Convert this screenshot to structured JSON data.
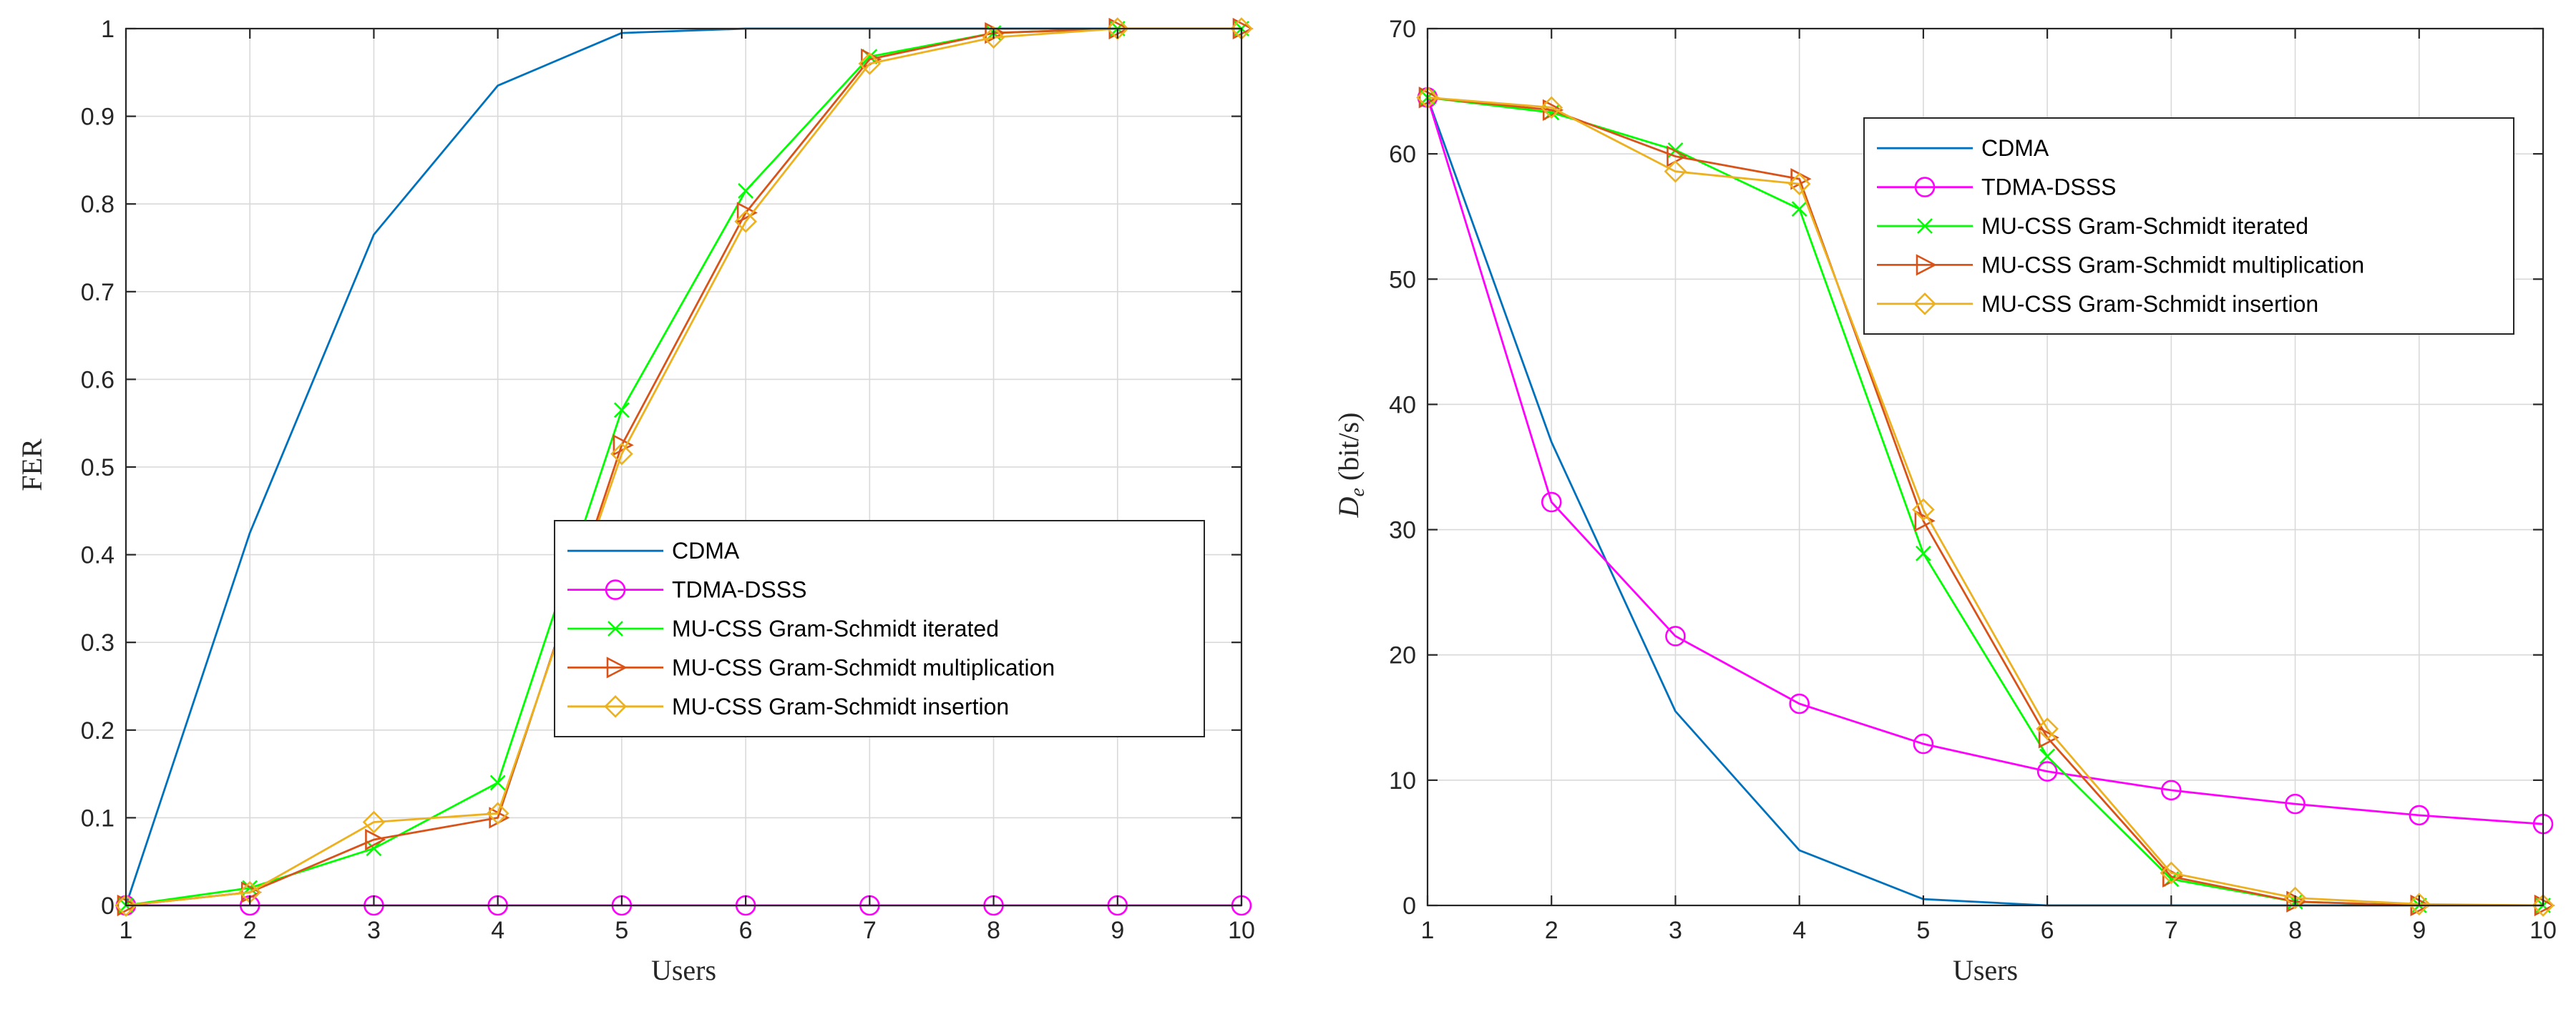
{
  "chart_data": [
    {
      "type": "line",
      "title": "",
      "xlabel": "Users",
      "ylabel": "FER",
      "xlim": [
        1,
        10
      ],
      "ylim": [
        0,
        1
      ],
      "grid": true,
      "legend_position": "center-right",
      "x": [
        1,
        2,
        3,
        4,
        5,
        6,
        7,
        8,
        9,
        10
      ],
      "x_ticks": [
        "1",
        "2",
        "3",
        "4",
        "5",
        "6",
        "7",
        "8",
        "9",
        "10"
      ],
      "y_ticks": [
        0,
        0.1,
        0.2,
        0.3,
        0.4,
        0.5,
        0.6,
        0.7,
        0.8,
        0.9,
        1
      ],
      "y_tick_labels": [
        "0",
        "0.1",
        "0.2",
        "0.3",
        "0.4",
        "0.5",
        "0.6",
        "0.7",
        "0.8",
        "0.9",
        "1"
      ],
      "series": [
        {
          "name": "CDMA",
          "color": "#0072BD",
          "marker": "none",
          "values": [
            0,
            0.425,
            0.765,
            0.935,
            0.995,
            1,
            1,
            1,
            1,
            1
          ]
        },
        {
          "name": "TDMA-DSSS",
          "color": "#FF00FF",
          "marker": "circle",
          "values": [
            0,
            0,
            0,
            0,
            0,
            0,
            0,
            0,
            0,
            0
          ]
        },
        {
          "name": "MU-CSS Gram-Schmidt iterated",
          "color": "#00FF00",
          "marker": "x",
          "values": [
            0,
            0.02,
            0.065,
            0.14,
            0.565,
            0.815,
            0.968,
            0.995,
            1,
            1
          ]
        },
        {
          "name": "MU-CSS Gram-Schmidt multiplication",
          "color": "#D95319",
          "marker": "triangle-right",
          "values": [
            0,
            0.015,
            0.075,
            0.1,
            0.525,
            0.79,
            0.965,
            0.995,
            1,
            1
          ]
        },
        {
          "name": "MU-CSS Gram-Schmidt insertion",
          "color": "#EDB120",
          "marker": "diamond",
          "values": [
            0,
            0.015,
            0.095,
            0.105,
            0.515,
            0.78,
            0.96,
            0.99,
            1,
            1
          ]
        }
      ]
    },
    {
      "type": "line",
      "title": "",
      "xlabel": "Users",
      "ylabel": "D",
      "ylabel_subscript": "e",
      "ylabel_units": "(bit/s)",
      "xlim": [
        1,
        10
      ],
      "ylim": [
        0,
        70
      ],
      "grid": true,
      "legend_position": "top-right",
      "x": [
        1,
        2,
        3,
        4,
        5,
        6,
        7,
        8,
        9,
        10
      ],
      "x_ticks": [
        "1",
        "2",
        "3",
        "4",
        "5",
        "6",
        "7",
        "8",
        "9",
        "10"
      ],
      "y_ticks": [
        0,
        10,
        20,
        30,
        40,
        50,
        60,
        70
      ],
      "y_tick_labels": [
        "0",
        "10",
        "20",
        "30",
        "40",
        "50",
        "60",
        "70"
      ],
      "series": [
        {
          "name": "CDMA",
          "color": "#0072BD",
          "marker": "none",
          "values": [
            64.5,
            37,
            15.5,
            4.4,
            0.5,
            0,
            0,
            0,
            0,
            0
          ]
        },
        {
          "name": "TDMA-DSSS",
          "color": "#FF00FF",
          "marker": "circle",
          "values": [
            64.5,
            32.2,
            21.5,
            16.1,
            12.9,
            10.7,
            9.2,
            8.1,
            7.2,
            6.5
          ]
        },
        {
          "name": "MU-CSS Gram-Schmidt iterated",
          "color": "#00FF00",
          "marker": "x",
          "values": [
            64.5,
            63.3,
            60.3,
            55.6,
            28.1,
            11.9,
            2.1,
            0.3,
            0,
            0
          ]
        },
        {
          "name": "MU-CSS Gram-Schmidt multiplication",
          "color": "#D95319",
          "marker": "triangle-right",
          "values": [
            64.5,
            63.5,
            59.8,
            58,
            30.7,
            13.4,
            2.3,
            0.3,
            0,
            0
          ]
        },
        {
          "name": "MU-CSS Gram-Schmidt insertion",
          "color": "#EDB120",
          "marker": "diamond",
          "values": [
            64.5,
            63.7,
            58.6,
            57.6,
            31.6,
            14.1,
            2.6,
            0.6,
            0.1,
            0
          ]
        }
      ]
    }
  ]
}
